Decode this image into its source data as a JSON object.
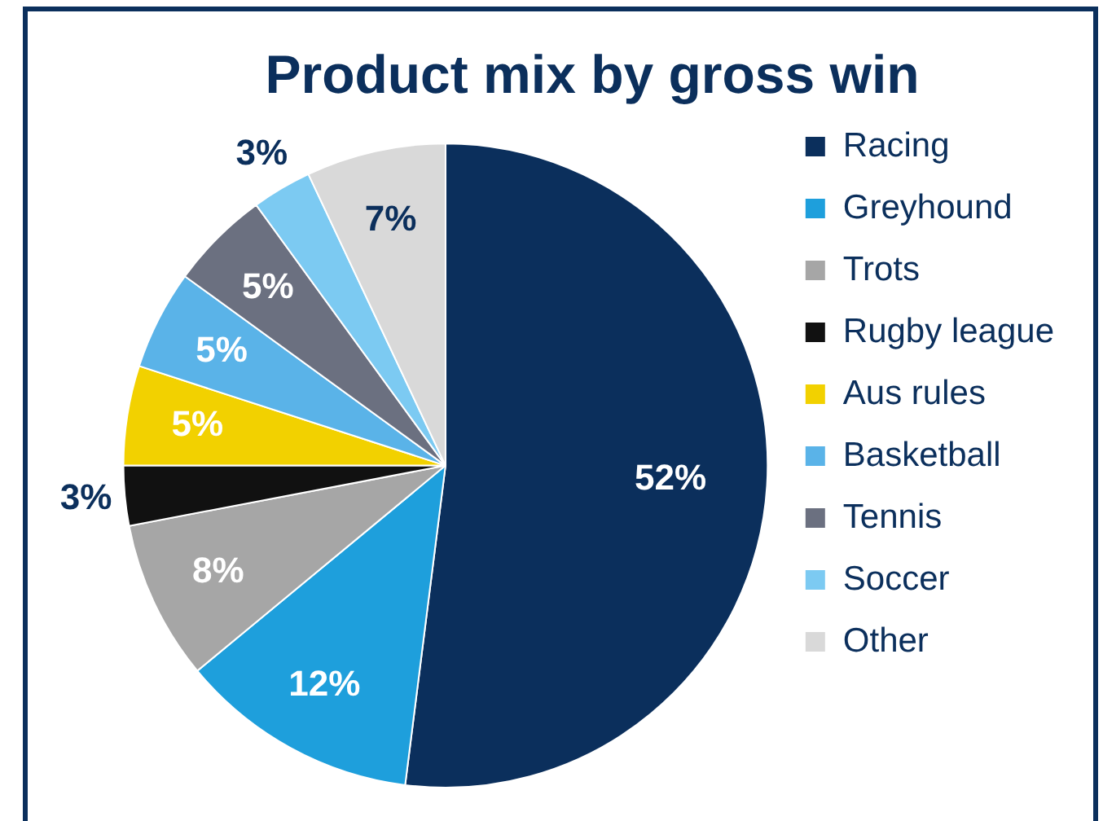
{
  "chart_data": {
    "type": "pie",
    "title": "Product mix by gross win",
    "categories": [
      "Racing",
      "Greyhound",
      "Trots",
      "Rugby league",
      "Aus rules",
      "Basketball",
      "Tennis",
      "Soccer",
      "Other"
    ],
    "values": [
      52,
      12,
      8,
      3,
      5,
      5,
      5,
      3,
      7
    ],
    "colors": [
      "#0b2f5c",
      "#1e9fdc",
      "#a6a6a6",
      "#111111",
      "#f2d100",
      "#5ab3e8",
      "#6b7080",
      "#7ccaf2",
      "#d9d9d9"
    ],
    "value_labels": [
      "52%",
      "12%",
      "8%",
      "3%",
      "5%",
      "5%",
      "5%",
      "3%",
      "7%"
    ],
    "legend": "right"
  }
}
